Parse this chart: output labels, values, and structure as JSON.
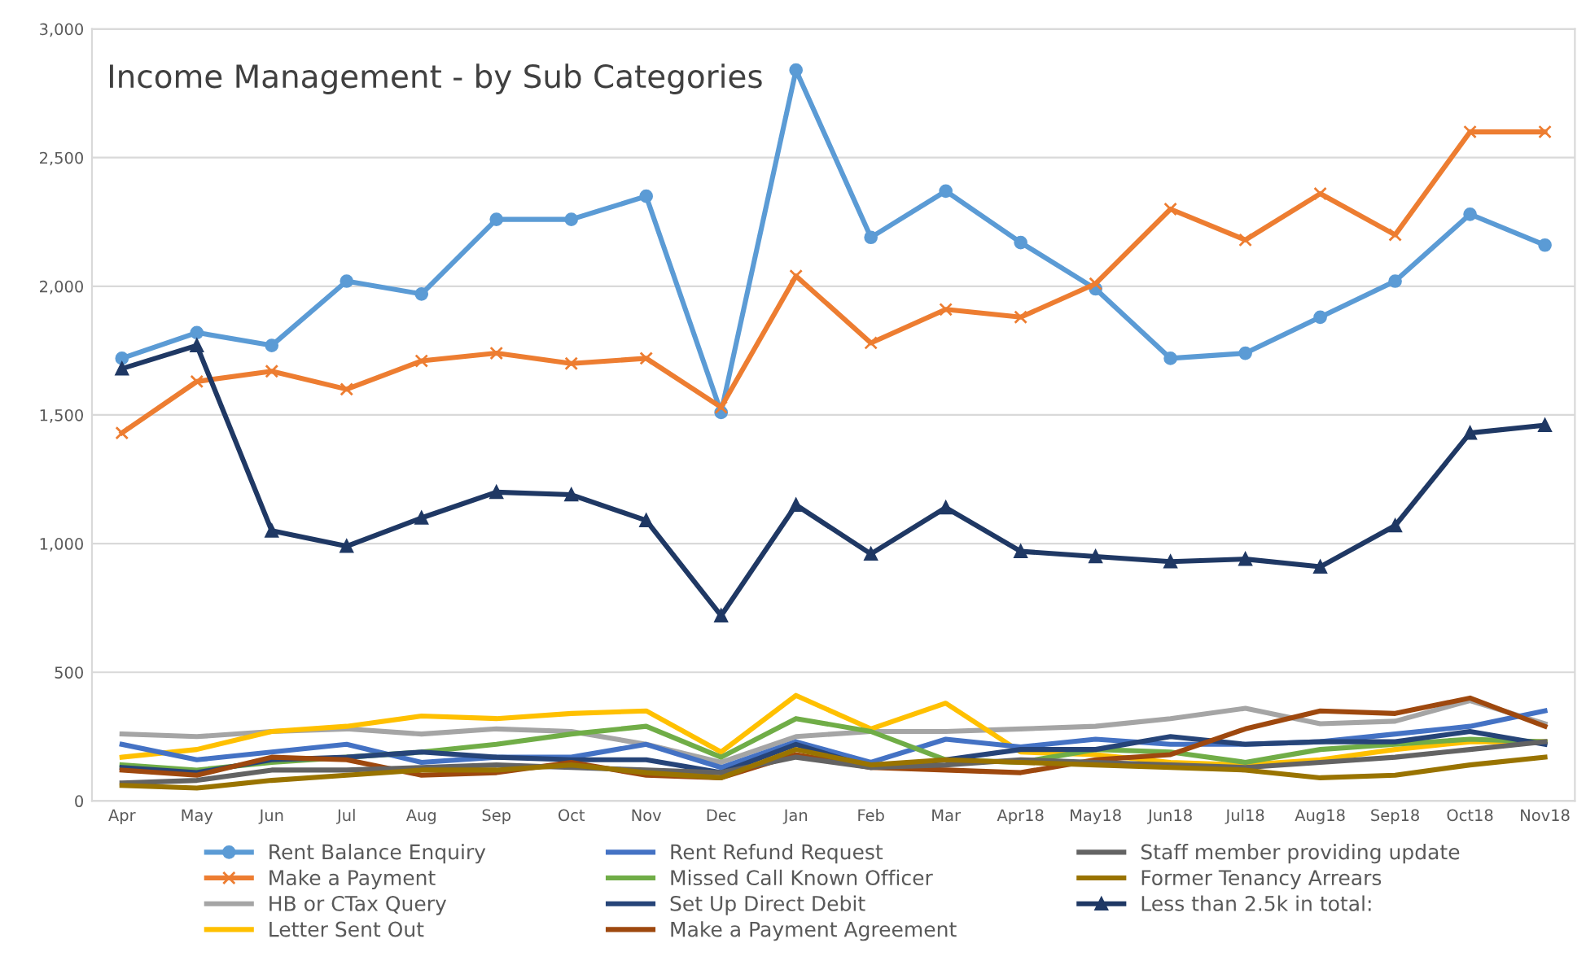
{
  "chart_data": {
    "type": "line",
    "title": "Income Management - by Sub Categories",
    "categories": [
      "Apr",
      "May",
      "Jun",
      "Jul",
      "Aug",
      "Sep",
      "Oct",
      "Nov",
      "Dec",
      "Jan",
      "Feb",
      "Mar",
      "Apr18",
      "May18",
      "Jun18",
      "Jul18",
      "Aug18",
      "Sep18",
      "Oct18",
      "Nov18"
    ],
    "series": [
      {
        "name": "Rent Balance Enquiry",
        "color": "#5b9bd5",
        "marker": "circle",
        "values": [
          1720,
          1820,
          1770,
          2020,
          1970,
          2260,
          2260,
          2350,
          1510,
          2840,
          2190,
          2370,
          2170,
          1990,
          1720,
          1740,
          1880,
          2020,
          2280,
          2160
        ]
      },
      {
        "name": "Make a Payment",
        "color": "#ed7d31",
        "marker": "cross",
        "values": [
          1430,
          1630,
          1670,
          1600,
          1710,
          1740,
          1700,
          1720,
          1530,
          2040,
          1780,
          1910,
          1880,
          2010,
          2300,
          2180,
          2360,
          2200,
          2600,
          2600
        ]
      },
      {
        "name": "HB or CTax Query",
        "color": "#a5a5a5",
        "marker": "none",
        "values": [
          260,
          250,
          270,
          280,
          260,
          280,
          270,
          220,
          150,
          250,
          270,
          270,
          280,
          290,
          320,
          360,
          300,
          310,
          390,
          300
        ]
      },
      {
        "name": "Letter Sent Out",
        "color": "#ffc000",
        "marker": "none",
        "values": [
          170,
          200,
          270,
          290,
          330,
          320,
          340,
          350,
          190,
          410,
          280,
          380,
          190,
          180,
          150,
          140,
          160,
          200,
          230,
          230
        ]
      },
      {
        "name": "Rent Refund Request",
        "color": "#4472c4",
        "marker": "none",
        "values": [
          220,
          160,
          190,
          220,
          150,
          170,
          170,
          220,
          130,
          230,
          150,
          240,
          210,
          240,
          220,
          220,
          230,
          260,
          290,
          350
        ]
      },
      {
        "name": "Missed Call Known Officer",
        "color": "#70ad47",
        "marker": "none",
        "values": [
          140,
          120,
          150,
          170,
          190,
          220,
          260,
          290,
          170,
          320,
          270,
          160,
          150,
          200,
          190,
          150,
          200,
          220,
          240,
          230
        ]
      },
      {
        "name": "Set Up Direct Debit",
        "color": "#264478",
        "marker": "none",
        "values": [
          130,
          110,
          160,
          170,
          190,
          170,
          160,
          160,
          110,
          220,
          130,
          160,
          200,
          200,
          250,
          220,
          230,
          230,
          270,
          220
        ]
      },
      {
        "name": "Make a Payment Agreement",
        "color": "#9e480e",
        "marker": "none",
        "values": [
          120,
          100,
          170,
          160,
          100,
          110,
          150,
          100,
          90,
          180,
          130,
          120,
          110,
          160,
          180,
          280,
          350,
          340,
          400,
          290
        ]
      },
      {
        "name": "Staff member providing update",
        "color": "#636363",
        "marker": "none",
        "values": [
          70,
          80,
          120,
          120,
          130,
          140,
          130,
          120,
          110,
          170,
          130,
          140,
          160,
          150,
          140,
          130,
          150,
          170,
          200,
          230
        ]
      },
      {
        "name": "Former Tenancy Arrears",
        "color": "#997300",
        "marker": "none",
        "values": [
          60,
          50,
          80,
          100,
          120,
          120,
          140,
          110,
          90,
          200,
          140,
          160,
          150,
          140,
          130,
          120,
          90,
          100,
          140,
          170
        ]
      },
      {
        "name": "Less than 2.5k in total:",
        "color": "#1f3864",
        "marker": "triangle",
        "values": [
          1680,
          1770,
          1050,
          990,
          1100,
          1200,
          1190,
          1090,
          720,
          1150,
          960,
          1140,
          970,
          950,
          930,
          940,
          910,
          1070,
          1430,
          1460
        ]
      }
    ],
    "ylim": [
      0,
      3000
    ],
    "yticks": [
      {
        "value": 0,
        "label": "0"
      },
      {
        "value": 500,
        "label": "500"
      },
      {
        "value": 1000,
        "label": "1,000"
      },
      {
        "value": 1500,
        "label": "1,500"
      },
      {
        "value": 2000,
        "label": "2,000"
      },
      {
        "value": 2500,
        "label": "2,500"
      },
      {
        "value": 3000,
        "label": "3,000"
      }
    ],
    "grid": "y",
    "legend": "bottom",
    "line_style": "solid"
  }
}
